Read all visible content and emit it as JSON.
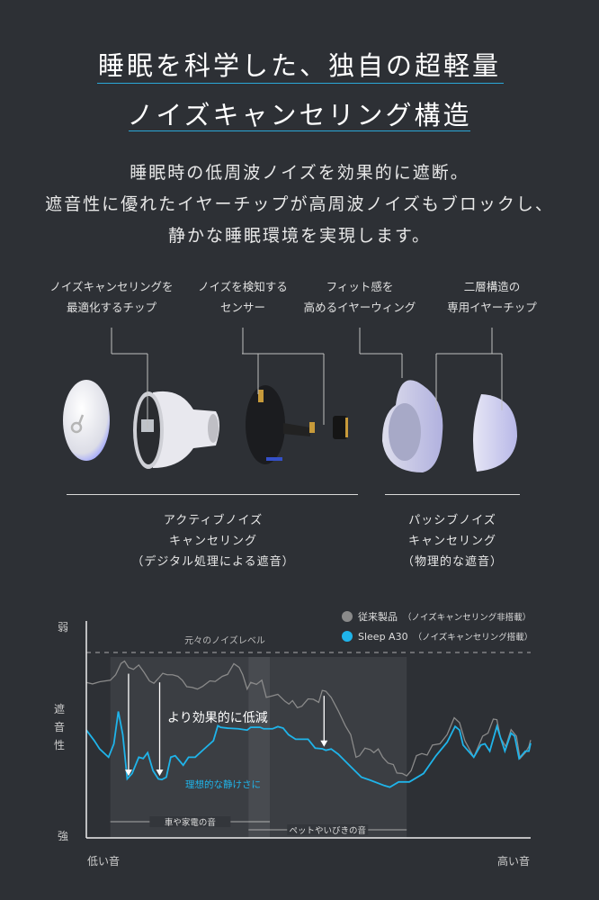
{
  "heading": {
    "line1": "睡眠を科学した、独自の超軽量",
    "line2": "ノイズキャンセリング構造",
    "accent": "#2aa7d8"
  },
  "description": [
    "睡眠時の低周波ノイズを効果的に遮断。",
    "遮音性に優れたイヤーチップが高周波ノイズもブロックし、",
    "静かな睡眠環境を実現します。"
  ],
  "components": [
    {
      "line1": "ノイズキャンセリングを",
      "line2": "最適化するチップ"
    },
    {
      "line1": "ノイズを検知する",
      "line2": "センサー"
    },
    {
      "line1": "フィット感を",
      "line2": "高めるイヤーウィング"
    },
    {
      "line1": "二層構造の",
      "line2": "専用イヤーチップ"
    }
  ],
  "logo_text": "soundcore",
  "sections": [
    {
      "line1": "アクティブノイズ",
      "line2": "キャンセリング",
      "line3": "（デジタル処理による遮音）"
    },
    {
      "line1": "パッシブノイズ",
      "line2": "キャンセリング",
      "line3": "（物理的な遮音）"
    }
  ],
  "chart_data": {
    "type": "line",
    "title": "",
    "xlabel_low": "低い音",
    "xlabel_high": "高い音",
    "ylabel": "遮音性",
    "ylabel_top": "弱",
    "ylabel_bottom": "強",
    "xlim": [
      0,
      100
    ],
    "ylim": [
      0,
      100
    ],
    "grid": false,
    "legend_position": "top-right",
    "reference_line": {
      "label": "元々のノイズレベル",
      "y": 85.5
    },
    "bands": [
      {
        "label": "車や家電の音",
        "x": [
          5.4,
          41.3
        ]
      },
      {
        "label": "ペットやいびきの音",
        "x": [
          36.5,
          72.1
        ]
      }
    ],
    "annotations": {
      "reduction": "より効果的に低減",
      "ideal": "理想的な静けさに"
    },
    "arrows": [
      {
        "x": 9.5,
        "from": 75.7,
        "to": 28.6
      },
      {
        "x": 16.5,
        "from": 71.7,
        "to": 28.6
      },
      {
        "x": 53.5,
        "from": 65.5,
        "to": 42
      }
    ],
    "series": [
      {
        "name": "従来製品",
        "name_note": "（ノイズキャンセリング非搭載）",
        "color": "#8a8a8a",
        "x": [
          0,
          1.4,
          3,
          5.4,
          6.6,
          7.8,
          8.6,
          9.5,
          10.6,
          11.8,
          13,
          14.2,
          15.2,
          16.2,
          17.2,
          18.2,
          19.4,
          20.6,
          21.6,
          22.6,
          23.8,
          25,
          26.2,
          27.8,
          29,
          30.6,
          31.8,
          33.2,
          34.4,
          35.2,
          36.2,
          37,
          38.3,
          39.5,
          40.5,
          41.9,
          43.1,
          44.7,
          45.6,
          46.4,
          47.5,
          48.5,
          49.9,
          51.1,
          52.3,
          53.1,
          53.9,
          55.1,
          56.7,
          58.3,
          59.5,
          60.7,
          61.5,
          62.7,
          63.9,
          64.7,
          65.7,
          66.7,
          67.9,
          69.1,
          69.9,
          71.1,
          72.1,
          73.1,
          74.3,
          75.5,
          76.7,
          77.9,
          79.6,
          81.2,
          82.8,
          84,
          85.2,
          87.2,
          89.2,
          90.4,
          91.6,
          92.4,
          93.2,
          94.4,
          95.6,
          96.8,
          97.6,
          98.8,
          99.6,
          100
        ],
        "y": [
          71.7,
          71,
          72,
          72.7,
          75.2,
          80.4,
          81.5,
          78.6,
          77.7,
          79.7,
          76.3,
          72.4,
          71.3,
          73.5,
          75.9,
          75.2,
          75.2,
          74.5,
          72.7,
          69.7,
          69.4,
          68.6,
          69.9,
          72.4,
          72.1,
          74.5,
          75.4,
          80.3,
          78.6,
          75.2,
          68.6,
          71.7,
          70.8,
          72.7,
          64.8,
          65.5,
          66.2,
          63,
          61.7,
          63.3,
          60,
          60.7,
          64.1,
          63.9,
          62.5,
          68,
          67.6,
          64.8,
          58.6,
          51.7,
          47.6,
          37.2,
          37.9,
          41.4,
          40.7,
          39.3,
          41,
          37.2,
          34.5,
          33.8,
          29.9,
          29.7,
          28.6,
          31,
          37.9,
          38.9,
          38.2,
          42.8,
          43.4,
          47.6,
          55.4,
          53.1,
          44.8,
          37.2,
          46.9,
          48.3,
          54.8,
          54.5,
          46.2,
          42.1,
          49.9,
          46.9,
          36.6,
          39.3,
          42.1,
          45.1
        ]
      },
      {
        "name": "Sleep A30",
        "name_note": "（ノイズキャンセリング搭載）",
        "color": "#1fb4ea",
        "x": [
          0,
          1.8,
          3,
          5,
          6.2,
          7.2,
          8.2,
          9.2,
          10.3,
          11.8,
          12.8,
          13.8,
          15,
          16.2,
          17,
          18,
          19,
          20,
          21.8,
          23,
          24.5,
          26.2,
          28.6,
          29.6,
          30.2,
          31.8,
          34.2,
          36.2,
          37,
          39.1,
          39.9,
          41.9,
          43.1,
          44.3,
          45.5,
          47.1,
          49.9,
          51.5,
          53.1,
          53.9,
          55.1,
          56.7,
          58.7,
          61.9,
          63.9,
          67.1,
          68.3,
          70.3,
          72.7,
          75.9,
          78.7,
          81.2,
          83,
          84,
          84.8,
          87.2,
          88.8,
          89.7,
          90.8,
          92.4,
          94.2,
          95.6,
          96.4,
          97.4,
          98.8,
          99.6,
          100
        ],
        "y": [
          49.7,
          44.8,
          41,
          37.2,
          43.4,
          58.3,
          47.6,
          27.2,
          29.7,
          37.2,
          36.6,
          39.3,
          31,
          27.2,
          26.9,
          28,
          37.2,
          37.9,
          33.5,
          37.2,
          37.2,
          40.4,
          44.8,
          51.7,
          51,
          50.6,
          50.3,
          49.7,
          51,
          51,
          50.3,
          50.3,
          51.3,
          50.6,
          47.6,
          45.5,
          45.5,
          41.4,
          41.1,
          40.4,
          41,
          38.6,
          34.5,
          28,
          26.6,
          24.1,
          23.4,
          25.8,
          25.8,
          29.7,
          37.9,
          44.1,
          51.4,
          49.7,
          42.8,
          37.2,
          42.8,
          43.4,
          40,
          51.4,
          40,
          48.3,
          46.9,
          36.6,
          40,
          40,
          43.7
        ]
      }
    ]
  }
}
